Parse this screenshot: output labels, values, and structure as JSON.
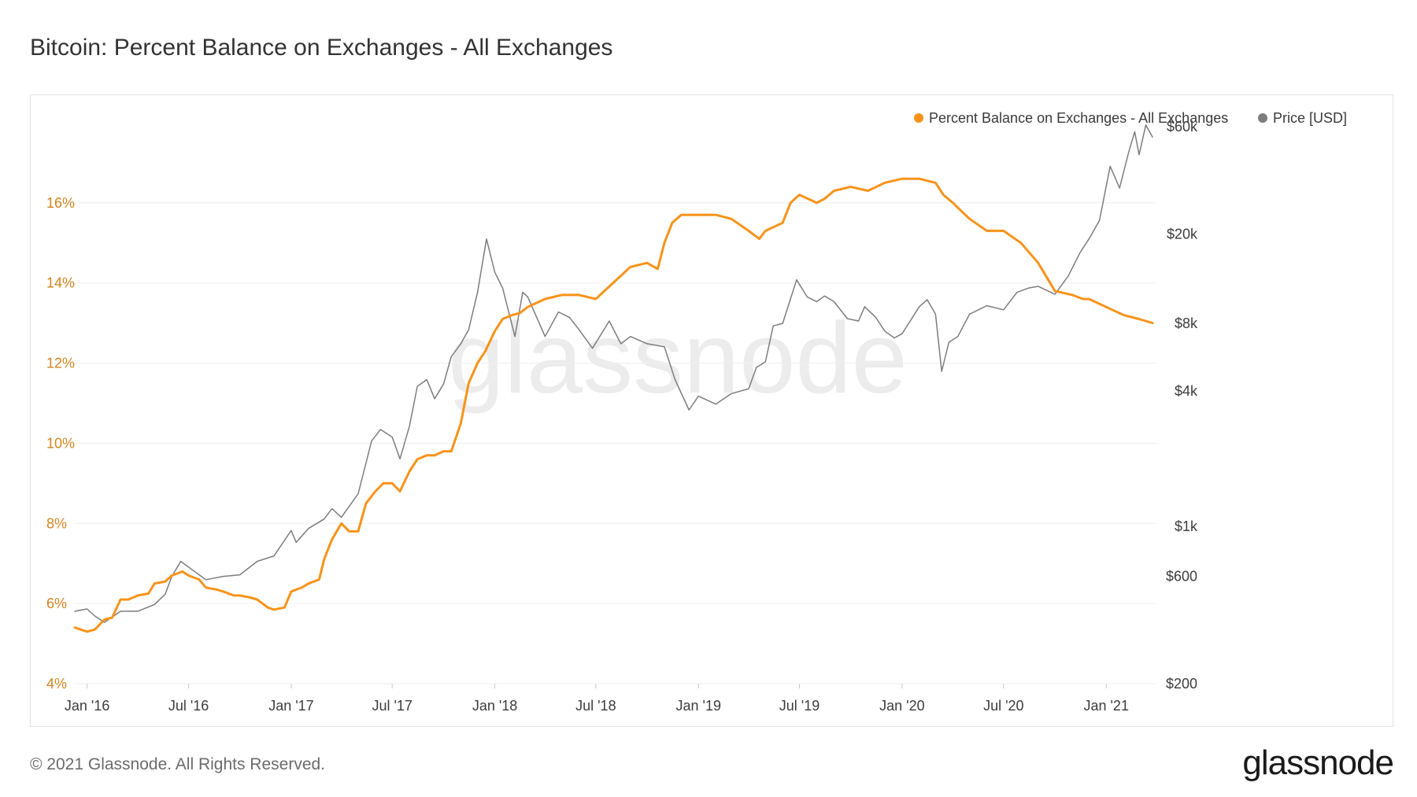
{
  "title": "Bitcoin: Percent Balance on Exchanges - All Exchanges",
  "footer": {
    "copyright": "© 2021 Glassnode. All Rights Reserved.",
    "logo": "glassnode"
  },
  "watermark": "glassnode",
  "colors": {
    "balance": "#f7931a",
    "price": "#7d7d7d",
    "left_axis": "#d2841e",
    "right_axis": "#3c3c3c",
    "grid": "#efefef"
  },
  "chart_data": {
    "type": "line",
    "title": "Bitcoin: Percent Balance on Exchanges - All Exchanges",
    "legend": {
      "placement": "top-right",
      "entries": [
        "Percent Balance on Exchanges - All Exchanges",
        "Price [USD]"
      ]
    },
    "grid": true,
    "x_ticks": [
      "Jan '16",
      "Jul '16",
      "Jan '17",
      "Jul '17",
      "Jan '18",
      "Jul '18",
      "Jan '19",
      "Jul '19",
      "Jan '20",
      "Jul '20",
      "Jan '21"
    ],
    "x_tick_dates": [
      "2016-01-01",
      "2016-07-01",
      "2017-01-01",
      "2017-07-01",
      "2018-01-01",
      "2018-07-01",
      "2019-01-01",
      "2019-07-01",
      "2020-01-01",
      "2020-07-01",
      "2021-01-01"
    ],
    "xlim": [
      "2015-12-10",
      "2021-04-01"
    ],
    "y_left": {
      "ticks": [
        "4%",
        "6%",
        "8%",
        "10%",
        "12%",
        "14%",
        "16%"
      ],
      "values": [
        4,
        6,
        8,
        10,
        12,
        14,
        16
      ],
      "ylim": [
        4,
        17.9
      ]
    },
    "y_right": {
      "scale": "log",
      "ticks": [
        "$200",
        "$600",
        "$1k",
        "$4k",
        "$8k",
        "$20k",
        "$60k"
      ],
      "values": [
        200,
        600,
        1000,
        4000,
        8000,
        20000,
        60000
      ],
      "ylim": [
        200,
        60000
      ]
    },
    "series": [
      {
        "name": "Percent Balance on Exchanges - All Exchanges",
        "axis": "left",
        "x": [
          "2015-12-10",
          "2016-01-01",
          "2016-01-15",
          "2016-02-01",
          "2016-02-15",
          "2016-03-01",
          "2016-03-15",
          "2016-04-01",
          "2016-04-20",
          "2016-05-01",
          "2016-05-20",
          "2016-06-01",
          "2016-06-20",
          "2016-07-01",
          "2016-07-20",
          "2016-08-01",
          "2016-08-20",
          "2016-09-01",
          "2016-09-20",
          "2016-10-01",
          "2016-10-20",
          "2016-11-01",
          "2016-11-20",
          "2016-12-01",
          "2016-12-20",
          "2017-01-01",
          "2017-01-20",
          "2017-02-01",
          "2017-02-20",
          "2017-03-01",
          "2017-03-15",
          "2017-04-01",
          "2017-04-15",
          "2017-05-01",
          "2017-05-15",
          "2017-06-01",
          "2017-06-15",
          "2017-07-01",
          "2017-07-15",
          "2017-08-01",
          "2017-08-15",
          "2017-09-01",
          "2017-09-15",
          "2017-10-01",
          "2017-10-15",
          "2017-11-01",
          "2017-11-15",
          "2017-12-01",
          "2017-12-15",
          "2018-01-01",
          "2018-01-15",
          "2018-02-01",
          "2018-02-15",
          "2018-03-01",
          "2018-04-01",
          "2018-05-01",
          "2018-06-01",
          "2018-07-01",
          "2018-08-01",
          "2018-09-01",
          "2018-10-01",
          "2018-10-20",
          "2018-11-01",
          "2018-11-15",
          "2018-12-01",
          "2018-12-15",
          "2019-01-01",
          "2019-02-01",
          "2019-03-01",
          "2019-04-01",
          "2019-04-20",
          "2019-05-01",
          "2019-06-01",
          "2019-06-15",
          "2019-07-01",
          "2019-08-01",
          "2019-08-15",
          "2019-09-01",
          "2019-10-01",
          "2019-11-01",
          "2019-12-01",
          "2020-01-01",
          "2020-02-01",
          "2020-03-01",
          "2020-03-15",
          "2020-04-01",
          "2020-05-01",
          "2020-06-01",
          "2020-07-01",
          "2020-08-01",
          "2020-09-01",
          "2020-10-01",
          "2020-11-01",
          "2020-11-20",
          "2020-12-01",
          "2021-01-01",
          "2021-02-01",
          "2021-03-01",
          "2021-03-25"
        ],
        "values": [
          5.4,
          5.3,
          5.35,
          5.6,
          5.65,
          6.1,
          6.1,
          6.2,
          6.25,
          6.5,
          6.55,
          6.7,
          6.8,
          6.7,
          6.6,
          6.4,
          6.35,
          6.3,
          6.2,
          6.2,
          6.15,
          6.1,
          5.9,
          5.85,
          5.9,
          6.3,
          6.4,
          6.5,
          6.6,
          7.1,
          7.6,
          8.0,
          7.8,
          7.8,
          8.5,
          8.8,
          9.0,
          9.0,
          8.8,
          9.3,
          9.6,
          9.7,
          9.7,
          9.8,
          9.8,
          10.5,
          11.5,
          12.0,
          12.3,
          12.8,
          13.1,
          13.2,
          13.25,
          13.4,
          13.6,
          13.7,
          13.7,
          13.6,
          14.0,
          14.4,
          14.5,
          14.35,
          15.0,
          15.5,
          15.7,
          15.7,
          15.7,
          15.7,
          15.6,
          15.3,
          15.1,
          15.3,
          15.5,
          16.0,
          16.2,
          16.0,
          16.1,
          16.3,
          16.4,
          16.3,
          16.5,
          16.6,
          16.6,
          16.5,
          16.2,
          16.0,
          15.6,
          15.3,
          15.3,
          15.0,
          14.5,
          13.8,
          13.7,
          13.6,
          13.6,
          13.4,
          13.2,
          13.1,
          13.0
        ]
      },
      {
        "name": "Price [USD]",
        "axis": "right",
        "x": [
          "2015-12-10",
          "2016-01-01",
          "2016-01-15",
          "2016-02-01",
          "2016-03-01",
          "2016-04-01",
          "2016-05-01",
          "2016-05-20",
          "2016-06-01",
          "2016-06-17",
          "2016-07-01",
          "2016-08-01",
          "2016-09-01",
          "2016-10-01",
          "2016-11-01",
          "2016-12-01",
          "2017-01-01",
          "2017-01-10",
          "2017-02-01",
          "2017-03-01",
          "2017-03-15",
          "2017-04-01",
          "2017-05-01",
          "2017-05-25",
          "2017-06-10",
          "2017-07-01",
          "2017-07-15",
          "2017-08-01",
          "2017-08-15",
          "2017-09-01",
          "2017-09-15",
          "2017-10-01",
          "2017-10-15",
          "2017-11-01",
          "2017-11-15",
          "2017-12-01",
          "2017-12-17",
          "2018-01-01",
          "2018-01-15",
          "2018-02-06",
          "2018-02-20",
          "2018-03-01",
          "2018-04-01",
          "2018-04-25",
          "2018-05-15",
          "2018-06-01",
          "2018-06-25",
          "2018-07-25",
          "2018-08-15",
          "2018-09-01",
          "2018-10-01",
          "2018-11-01",
          "2018-11-20",
          "2018-12-15",
          "2019-01-01",
          "2019-02-01",
          "2019-03-01",
          "2019-04-01",
          "2019-04-15",
          "2019-05-01",
          "2019-05-15",
          "2019-06-01",
          "2019-06-26",
          "2019-07-15",
          "2019-08-01",
          "2019-08-15",
          "2019-09-01",
          "2019-09-25",
          "2019-10-15",
          "2019-10-26",
          "2019-11-15",
          "2019-12-01",
          "2019-12-18",
          "2020-01-01",
          "2020-02-01",
          "2020-02-15",
          "2020-03-01",
          "2020-03-12",
          "2020-03-25",
          "2020-04-10",
          "2020-05-01",
          "2020-06-01",
          "2020-07-01",
          "2020-07-25",
          "2020-08-15",
          "2020-09-01",
          "2020-10-01",
          "2020-10-25",
          "2020-11-15",
          "2020-12-01",
          "2020-12-20",
          "2021-01-08",
          "2021-01-25",
          "2021-02-10",
          "2021-02-21",
          "2021-03-01",
          "2021-03-13",
          "2021-03-25"
        ],
        "values": [
          420,
          430,
          400,
          375,
          420,
          420,
          450,
          500,
          600,
          700,
          660,
          580,
          600,
          610,
          700,
          740,
          960,
          850,
          980,
          1080,
          1200,
          1100,
          1400,
          2400,
          2700,
          2500,
          2000,
          2800,
          4200,
          4500,
          3700,
          4300,
          5700,
          6500,
          7500,
          11000,
          19000,
          13500,
          11500,
          7000,
          11000,
          10500,
          7000,
          9000,
          8500,
          7500,
          6200,
          8200,
          6500,
          7000,
          6500,
          6300,
          4500,
          3300,
          3800,
          3500,
          3900,
          4100,
          5100,
          5400,
          7800,
          8000,
          12500,
          10500,
          10000,
          10600,
          10000,
          8400,
          8200,
          9500,
          8500,
          7400,
          6900,
          7200,
          9500,
          10200,
          8800,
          4900,
          6600,
          7000,
          8800,
          9600,
          9200,
          11000,
          11500,
          11700,
          10800,
          13000,
          16500,
          19000,
          23000,
          40000,
          32000,
          46000,
          57000,
          45000,
          61000,
          54000
        ]
      }
    ]
  }
}
